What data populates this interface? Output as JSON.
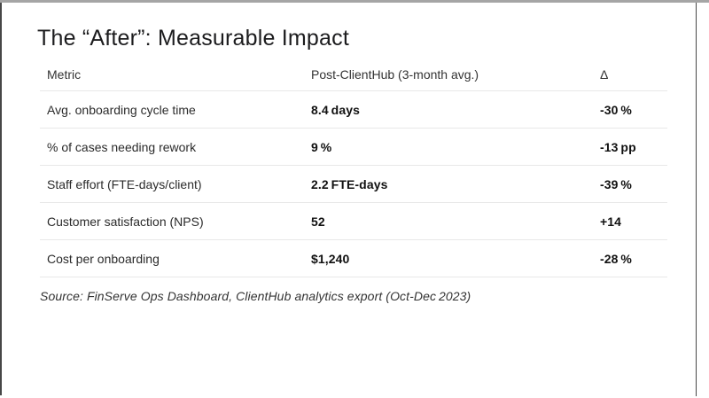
{
  "slide": {
    "title": "The “After”: Measurable Impact",
    "table": {
      "columns": [
        "Metric",
        "Post-ClientHub (3-month avg.)",
        "Δ"
      ],
      "rows": [
        {
          "metric": "Avg. onboarding cycle time",
          "value": "8.4 days",
          "delta": "-30 %"
        },
        {
          "metric": "% of cases needing rework",
          "value": "9 %",
          "delta": "-13 pp"
        },
        {
          "metric": "Staff effort (FTE-days/client)",
          "value": "2.2 FTE-days",
          "delta": "-39 %"
        },
        {
          "metric": "Customer satisfaction (NPS)",
          "value": "52",
          "delta": "+14"
        },
        {
          "metric": "Cost per onboarding",
          "value": "$1,240",
          "delta": "-28 %"
        }
      ]
    },
    "source": "Source: FinServe Ops Dashboard, ClientHub analytics export (Oct-Dec 2023)"
  },
  "frame": {
    "top_edge_color": "#a5a5a5",
    "side_edge_color": "#474747"
  }
}
